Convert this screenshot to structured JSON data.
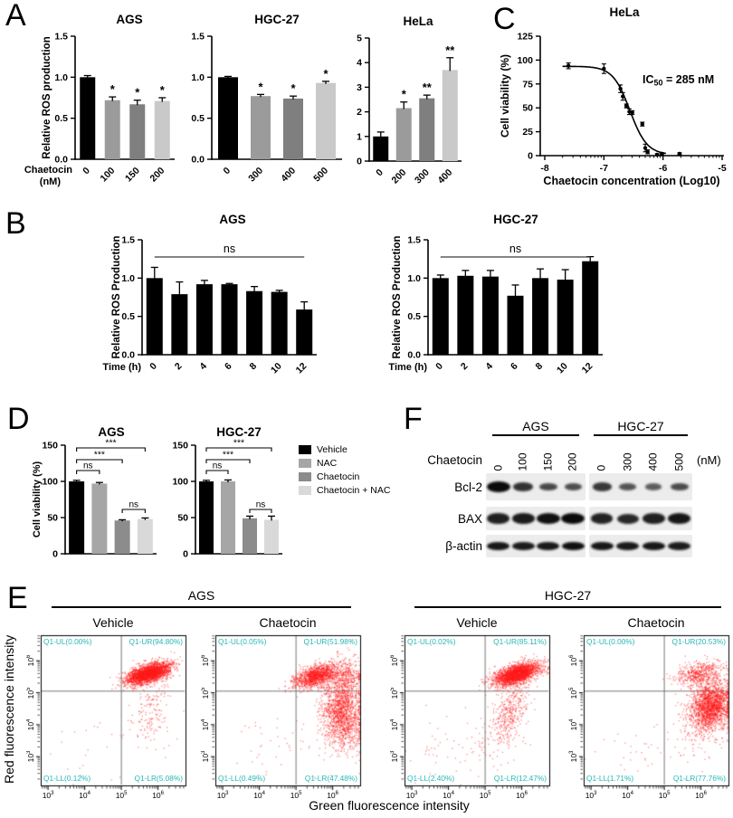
{
  "figure": {
    "panel_labels": {
      "A": "A",
      "B": "B",
      "C": "C",
      "D": "D",
      "E": "E",
      "F": "F"
    }
  },
  "panel_e": {
    "group_titles": [
      "AGS",
      "HGC-27"
    ],
    "xlabel": "Green fluorescence intensity",
    "ylabel": "Red fluorescence intensity"
  },
  "chart_data": [
    {
      "id": "A-AGS",
      "type": "bar",
      "title": "AGS",
      "ylabel": "Relative ROS production",
      "xlabel_lines": [
        "Chaetocin",
        "(nM)"
      ],
      "categories": [
        "0",
        "100",
        "150",
        "200"
      ],
      "values": [
        1.0,
        0.72,
        0.67,
        0.71
      ],
      "errors": [
        0.02,
        0.04,
        0.05,
        0.04
      ],
      "sig": [
        "",
        "*",
        "*",
        "*"
      ],
      "ylim": [
        0,
        1.5
      ],
      "yticks": [
        0,
        0.5,
        1.0,
        1.5
      ],
      "ytick_labels": [
        "0.0",
        "0.5",
        "1.0",
        "1.5"
      ],
      "colors": [
        "#000000",
        "#9b9b9b",
        "#7f7f7f",
        "#c9c9c9"
      ]
    },
    {
      "id": "A-HGC27",
      "type": "bar",
      "title": "HGC-27",
      "ylabel": null,
      "categories": [
        "0",
        "300",
        "400",
        "500"
      ],
      "values": [
        1.0,
        0.77,
        0.74,
        0.93
      ],
      "errors": [
        0.01,
        0.02,
        0.03,
        0.02
      ],
      "sig": [
        "",
        "*",
        "*",
        "*"
      ],
      "ylim": [
        0,
        1.5
      ],
      "yticks": [
        0,
        0.5,
        1.0,
        1.5
      ],
      "ytick_labels": [
        "0.0",
        "0.5",
        "1.0",
        "1.5"
      ],
      "colors": [
        "#000000",
        "#9b9b9b",
        "#7f7f7f",
        "#c9c9c9"
      ]
    },
    {
      "id": "A-HeLa",
      "type": "bar",
      "title": "HeLa",
      "ylabel": null,
      "categories": [
        "0",
        "200",
        "300",
        "400"
      ],
      "values": [
        1.0,
        2.15,
        2.55,
        3.7
      ],
      "errors": [
        0.18,
        0.25,
        0.13,
        0.5
      ],
      "sig": [
        "",
        "*",
        "**",
        "**"
      ],
      "ylim": [
        0,
        5
      ],
      "yticks": [
        0,
        1,
        2,
        3,
        4,
        5
      ],
      "ytick_labels": [
        "0",
        "1",
        "2",
        "3",
        "4",
        "5"
      ],
      "colors": [
        "#000000",
        "#9b9b9b",
        "#7f7f7f",
        "#c9c9c9"
      ]
    },
    {
      "id": "B-AGS",
      "type": "bar",
      "title": "AGS",
      "ylabel": "Relative ROS Production",
      "xlabel_lines": [
        "Time (h)"
      ],
      "categories": [
        "0",
        "2",
        "4",
        "6",
        "8",
        "10",
        "12"
      ],
      "values": [
        1.0,
        0.79,
        0.92,
        0.92,
        0.83,
        0.82,
        0.59
      ],
      "errors": [
        0.14,
        0.16,
        0.05,
        0.01,
        0.06,
        0.02,
        0.1
      ],
      "ns_label": "ns",
      "ylim": [
        0,
        1.5
      ],
      "yticks": [
        0,
        0.5,
        1.0,
        1.5
      ],
      "ytick_labels": [
        "0.0",
        "0.5",
        "1.0",
        "1.5"
      ],
      "colors": [
        "#000000",
        "#000000",
        "#000000",
        "#000000",
        "#000000",
        "#000000",
        "#000000"
      ]
    },
    {
      "id": "B-HGC27",
      "type": "bar",
      "title": "HGC-27",
      "ylabel": "Relative ROS Production",
      "xlabel_lines": [
        "Time (h)"
      ],
      "categories": [
        "0",
        "2",
        "4",
        "6",
        "8",
        "10",
        "12"
      ],
      "values": [
        1.0,
        1.03,
        1.02,
        0.77,
        1.0,
        0.98,
        1.22
      ],
      "errors": [
        0.04,
        0.07,
        0.08,
        0.14,
        0.12,
        0.13,
        0.06
      ],
      "ns_label": "ns",
      "ylim": [
        0,
        1.5
      ],
      "yticks": [
        0,
        0.5,
        1.0,
        1.5
      ],
      "ytick_labels": [
        "0.0",
        "0.5",
        "1.0",
        "1.5"
      ],
      "colors": [
        "#000000",
        "#000000",
        "#000000",
        "#000000",
        "#000000",
        "#000000",
        "#000000"
      ]
    },
    {
      "id": "C-HeLa",
      "type": "line-scatter",
      "title": "HeLa",
      "ylabel": "Cell viability (%)",
      "xlabel": "Chaetocin concentration (Log10)",
      "annotation": {
        "pre": "IC",
        "sub": "50",
        "post": " = 285 nM"
      },
      "xlim": [
        -8,
        -5
      ],
      "ylim": [
        0,
        125
      ],
      "xticks": [
        -8,
        -7,
        -6,
        -5
      ],
      "xtick_labels": [
        "-8",
        "-7",
        "-6",
        "-5"
      ],
      "yticks": [
        0,
        25,
        50,
        75,
        100,
        125
      ],
      "ytick_labels": [
        "0",
        "25",
        "50",
        "75",
        "100",
        "125"
      ],
      "points": [
        {
          "x": -7.6,
          "y": 94,
          "err": 3
        },
        {
          "x": -7.0,
          "y": 91,
          "err": 5
        },
        {
          "x": -6.72,
          "y": 70,
          "err": 4
        },
        {
          "x": -6.68,
          "y": 62,
          "err": 4
        },
        {
          "x": -6.62,
          "y": 52,
          "err": 2
        },
        {
          "x": -6.57,
          "y": 46,
          "err": 3
        },
        {
          "x": -6.52,
          "y": 45,
          "err": 2
        },
        {
          "x": -6.35,
          "y": 33,
          "err": 2
        },
        {
          "x": -6.3,
          "y": 8,
          "err": 4
        },
        {
          "x": -6.26,
          "y": 4,
          "err": 2
        },
        {
          "x": -6.1,
          "y": 1,
          "err": 1
        },
        {
          "x": -6.02,
          "y": 2,
          "err": 1
        },
        {
          "x": -5.72,
          "y": 2,
          "err": 1
        }
      ],
      "curve": {
        "top": 93.5,
        "bottom": 1,
        "logIC50": -6.56,
        "hill": 3,
        "x_start": -7.7,
        "x_end": -5.95
      },
      "ic50_value": "285 nM"
    },
    {
      "id": "D-AGS",
      "type": "bar",
      "title": "AGS",
      "ylabel": "Cell viability (%)",
      "categories": [
        "Vehicle",
        "NAC",
        "Chaetocin",
        "Chaetocin + NAC"
      ],
      "values": [
        100,
        97,
        46,
        48
      ],
      "errors": [
        1.5,
        1.5,
        1,
        1.5
      ],
      "brackets": [
        {
          "from": 0,
          "to": 1,
          "label": "ns"
        },
        {
          "from": 0,
          "to": 2,
          "label": "***"
        },
        {
          "from": 0,
          "to": 3,
          "label": "***"
        },
        {
          "from": 2,
          "to": 3,
          "label": "ns"
        }
      ],
      "ylim": [
        0,
        150
      ],
      "yticks": [
        0,
        50,
        100,
        150
      ],
      "ytick_labels": [
        "0",
        "50",
        "100",
        "150"
      ],
      "colors": [
        "#000000",
        "#a6a6a6",
        "#8c8c8c",
        "#d9d9d9"
      ],
      "legend": [
        {
          "label": "Vehicle",
          "color": "#000000"
        },
        {
          "label": "NAC",
          "color": "#a6a6a6"
        },
        {
          "label": "Chaetocin",
          "color": "#8c8c8c"
        },
        {
          "label": "Chaetocin + NAC",
          "color": "#d9d9d9"
        }
      ]
    },
    {
      "id": "D-HGC27",
      "type": "bar",
      "title": "HGC-27",
      "ylabel": null,
      "categories": [
        "Vehicle",
        "NAC",
        "Chaetocin",
        "Chaetocin + NAC"
      ],
      "values": [
        100,
        100,
        49,
        47
      ],
      "errors": [
        1.5,
        2,
        3,
        5
      ],
      "brackets": [
        {
          "from": 0,
          "to": 1,
          "label": "ns"
        },
        {
          "from": 0,
          "to": 2,
          "label": "***"
        },
        {
          "from": 0,
          "to": 3,
          "label": "***"
        },
        {
          "from": 2,
          "to": 3,
          "label": "ns"
        }
      ],
      "ylim": [
        0,
        150
      ],
      "yticks": [
        0,
        50,
        100,
        150
      ],
      "ytick_labels": [
        "0",
        "50",
        "100",
        "150"
      ],
      "colors": [
        "#000000",
        "#a6a6a6",
        "#8c8c8c",
        "#d9d9d9"
      ]
    },
    {
      "id": "E-AGS-Vehicle",
      "type": "flow-scatter",
      "cell_line": "AGS",
      "condition": "Vehicle",
      "x_ticks_exp": [
        3,
        4,
        5,
        6
      ],
      "y_ticks_exp": [
        3,
        4,
        5,
        6
      ],
      "xlim_log": [
        2.8,
        6.75
      ],
      "ylim_log": [
        2.1,
        6.8
      ],
      "quadrant_split_log": {
        "x": 5.0,
        "y": 5.05
      },
      "quadrant_labels": {
        "UL": "Q1-UL(0.00%)",
        "UR": "Q1-UR(94.80%)",
        "LL": "Q1-LL(0.12%)",
        "LR": "Q1-LR(5.08%)"
      },
      "point_color": "#ff1919",
      "clusters": [
        {
          "cx": 5.72,
          "cy": 5.62,
          "sx": 0.3,
          "sy": 0.17,
          "rho": 0.55,
          "n": 2600
        },
        {
          "cx": 5.8,
          "cy": 4.4,
          "sx": 0.28,
          "sy": 0.55,
          "rho": 0.2,
          "n": 170
        },
        {
          "cx": 4.3,
          "cy": 3.3,
          "sx": 0.7,
          "sy": 0.5,
          "rho": 0,
          "n": 22
        }
      ],
      "seed": 11
    },
    {
      "id": "E-AGS-Chaetocin",
      "type": "flow-scatter",
      "cell_line": "AGS",
      "condition": "Chaetocin",
      "x_ticks_exp": [
        3,
        4,
        5,
        6
      ],
      "y_ticks_exp": [
        3,
        4,
        5,
        6
      ],
      "xlim_log": [
        2.8,
        6.75
      ],
      "ylim_log": [
        2.1,
        6.8
      ],
      "quadrant_split_log": {
        "x": 5.0,
        "y": 5.05
      },
      "quadrant_labels": {
        "UL": "Q1-UL(0.05%)",
        "UR": "Q1-UR(51.98%)",
        "LL": "Q1-LL(0.49%)",
        "LR": "Q1-LR(47.48%)"
      },
      "point_color": "#ff1919",
      "clusters": [
        {
          "cx": 5.55,
          "cy": 5.55,
          "sx": 0.28,
          "sy": 0.18,
          "rho": 0.45,
          "n": 1300
        },
        {
          "cx": 6.35,
          "cy": 5.45,
          "sx": 0.22,
          "sy": 0.35,
          "rho": 0,
          "n": 420
        },
        {
          "cx": 6.25,
          "cy": 4.35,
          "sx": 0.28,
          "sy": 0.55,
          "rho": -0.1,
          "n": 1500
        },
        {
          "cx": 4.4,
          "cy": 3.4,
          "sx": 0.7,
          "sy": 0.5,
          "rho": 0,
          "n": 40
        }
      ],
      "seed": 12
    },
    {
      "id": "E-HGC27-Vehicle",
      "type": "flow-scatter",
      "cell_line": "HGC-27",
      "condition": "Vehicle",
      "x_ticks_exp": [
        3,
        4,
        5,
        6
      ],
      "y_ticks_exp": [
        3,
        4,
        5,
        6
      ],
      "xlim_log": [
        2.8,
        6.75
      ],
      "ylim_log": [
        2.1,
        6.8
      ],
      "quadrant_split_log": {
        "x": 5.0,
        "y": 5.05
      },
      "quadrant_labels": {
        "UL": "Q1-UL(0.02%)",
        "UR": "Q1-UR(85.11%)",
        "LL": "Q1-LL(2.40%)",
        "LR": "Q1-LR(12.47%)"
      },
      "point_color": "#ff1919",
      "clusters": [
        {
          "cx": 5.85,
          "cy": 5.6,
          "sx": 0.32,
          "sy": 0.18,
          "rho": 0.55,
          "n": 2300
        },
        {
          "cx": 5.65,
          "cy": 4.4,
          "sx": 0.3,
          "sy": 0.6,
          "rho": 0.5,
          "n": 430
        },
        {
          "cx": 4.1,
          "cy": 3.3,
          "sx": 0.75,
          "sy": 0.55,
          "rho": 0.3,
          "n": 60
        }
      ],
      "seed": 13
    },
    {
      "id": "E-HGC27-Chaetocin",
      "type": "flow-scatter",
      "cell_line": "HGC-27",
      "condition": "Chaetocin",
      "x_ticks_exp": [
        3,
        4,
        5,
        6
      ],
      "y_ticks_exp": [
        3,
        4,
        5,
        6
      ],
      "xlim_log": [
        2.8,
        6.75
      ],
      "ylim_log": [
        2.1,
        6.8
      ],
      "quadrant_split_log": {
        "x": 5.0,
        "y": 5.05
      },
      "quadrant_labels": {
        "UL": "Q1-UL(0.00%)",
        "UR": "Q1-UR(20.53%)",
        "LL": "Q1-LL(1.71%)",
        "LR": "Q1-LR(77.76%)"
      },
      "point_color": "#ff1919",
      "clusters": [
        {
          "cx": 5.95,
          "cy": 5.6,
          "sx": 0.33,
          "sy": 0.2,
          "rho": 0.3,
          "n": 520
        },
        {
          "cx": 6.25,
          "cy": 4.6,
          "sx": 0.28,
          "sy": 0.35,
          "rho": 0.2,
          "n": 1900
        },
        {
          "cx": 5.95,
          "cy": 3.7,
          "sx": 0.4,
          "sy": 0.4,
          "rho": 0.2,
          "n": 130
        },
        {
          "cx": 4.2,
          "cy": 3.3,
          "sx": 0.7,
          "sy": 0.5,
          "rho": 0,
          "n": 30
        }
      ],
      "seed": 14
    },
    {
      "id": "F-blots",
      "type": "blot",
      "treatment_label": "Chaetocin",
      "unit": "(nM)",
      "groups": [
        {
          "name": "AGS",
          "doses": [
            "0",
            "100",
            "150",
            "200"
          ]
        },
        {
          "name": "HGC-27",
          "doses": [
            "0",
            "300",
            "400",
            "500"
          ]
        }
      ],
      "rows": [
        {
          "protein": "Bcl-2",
          "bands": [
            [
              1.0,
              0.68,
              0.5,
              0.45
            ],
            [
              0.62,
              0.4,
              0.34,
              0.48
            ]
          ]
        },
        {
          "protein": "BAX",
          "bands": [
            [
              0.82,
              0.86,
              0.95,
              1.0
            ],
            [
              0.8,
              0.75,
              0.82,
              0.9
            ]
          ]
        },
        {
          "protein": "β-actin",
          "bands": [
            [
              0.9,
              0.86,
              0.88,
              0.95
            ],
            [
              0.9,
              0.88,
              0.9,
              0.85
            ]
          ]
        }
      ]
    }
  ]
}
